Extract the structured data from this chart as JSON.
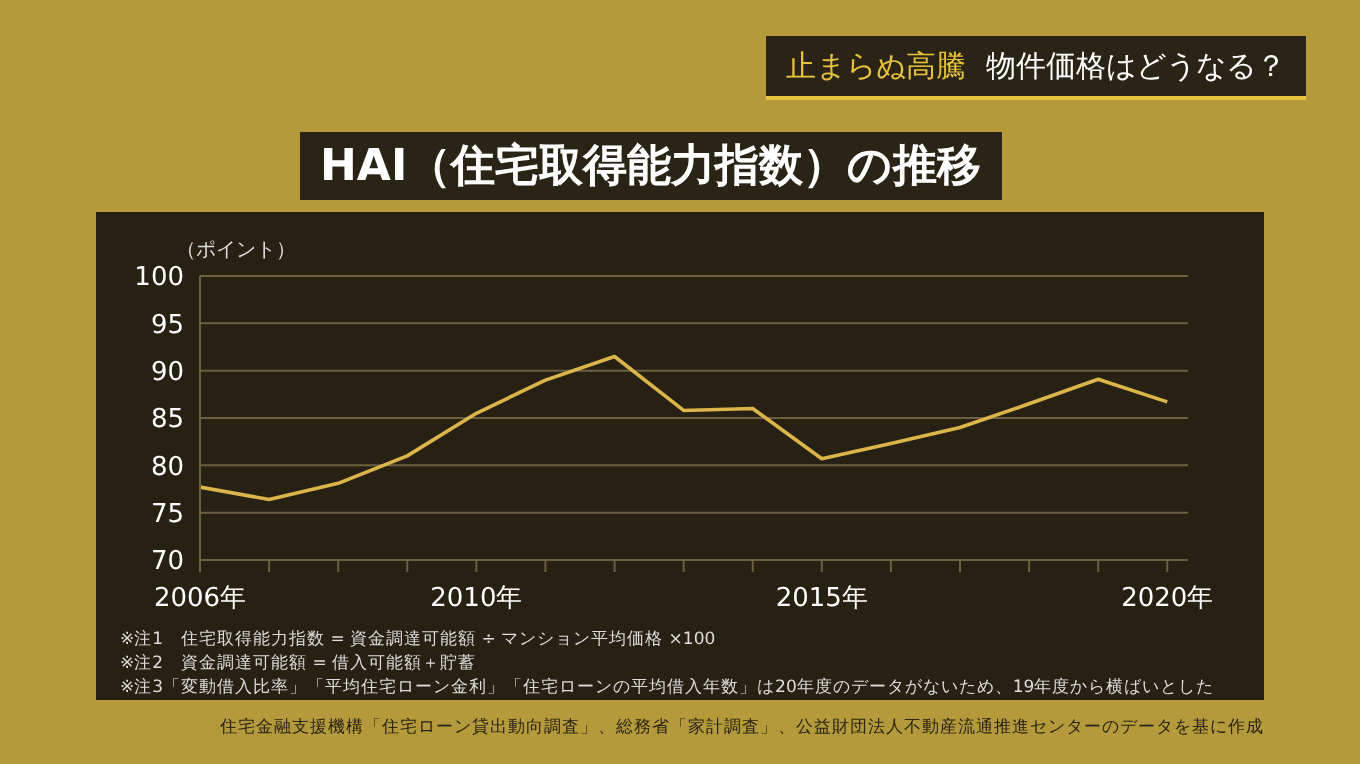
{
  "chart_data": {
    "type": "line",
    "title": "HAI（住宅取得能力指数）の推移",
    "subtitle": "止まらぬ高騰 物件価格はどうなる？",
    "ylabel": "（ポイント）",
    "x": [
      2006,
      2007,
      2008,
      2009,
      2010,
      2011,
      2012,
      2013,
      2014,
      2015,
      2016,
      2017,
      2018,
      2019,
      2020
    ],
    "series": [
      {
        "color": "#dcb54a",
        "values": [
          77.7,
          76.4,
          78.1,
          81,
          85.5,
          89,
          91.5,
          85.8,
          86,
          80.7,
          82.3,
          84,
          86.5,
          89.1,
          86.7
        ]
      }
    ],
    "xlim": [
      2006,
      2020.3
    ],
    "xticks": [
      {
        "value": 2006,
        "label": "2006年"
      },
      {
        "value": 2007,
        "label": null
      },
      {
        "value": 2008,
        "label": null
      },
      {
        "value": 2009,
        "label": null
      },
      {
        "value": 2010,
        "label": "2010年"
      },
      {
        "value": 2011,
        "label": null
      },
      {
        "value": 2012,
        "label": null
      },
      {
        "value": 2013,
        "label": null
      },
      {
        "value": 2014,
        "label": null
      },
      {
        "value": 2015,
        "label": "2015年"
      },
      {
        "value": 2016,
        "label": null
      },
      {
        "value": 2017,
        "label": null
      },
      {
        "value": 2018,
        "label": null
      },
      {
        "value": 2019,
        "label": null
      },
      {
        "value": 2020,
        "label": "2020年"
      }
    ],
    "ylim": [
      70,
      100
    ],
    "yticks": [
      70,
      75,
      80,
      85,
      90,
      95,
      100
    ],
    "grid": "y",
    "marker": "none",
    "line_style": "solid",
    "annotations": [
      "※注1　住宅取得能力指数 = 資金調達可能額 ÷ マンション平均価格 ×100",
      "※注2　資金調達可能額 = 借入可能額＋貯蓄",
      "※注3「変動借入比率」「平均住宅ローン金利」「住宅ローンの平均借入年数」は20年度のデータがないため、19年度から横ばいとした",
      "住宅金融支援機構「住宅ローン貸出動向調査」、総務省「家計調査」、公益財団法人不動産流通推進センターのデータを基に作成"
    ]
  }
}
